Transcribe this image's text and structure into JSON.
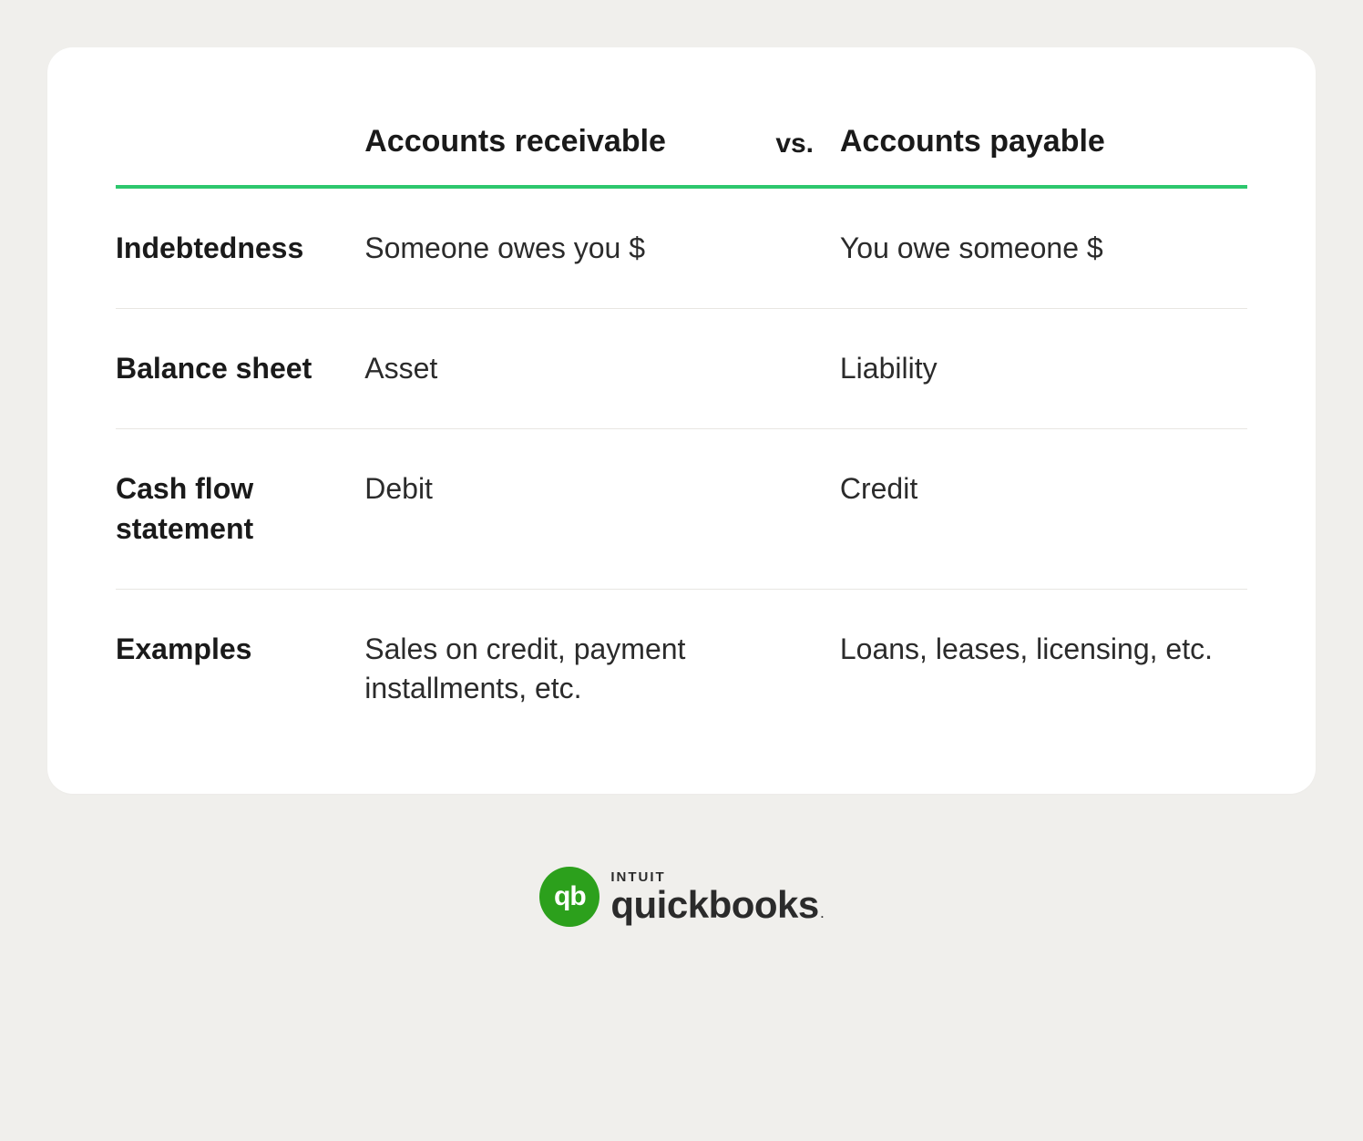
{
  "table": {
    "type": "table",
    "background_color": "#ffffff",
    "card_border_radius": 28,
    "header_underline_color": "#2dc76d",
    "header_underline_width": 4,
    "row_divider_color": "#e8e6e2",
    "header_fontsize": 34,
    "vs_fontsize": 30,
    "cell_fontsize": 32,
    "label_fontweight": 700,
    "text_color": "#2b2b2b",
    "label_color": "#1a1a1a",
    "column_widths_pct": [
      22,
      34,
      8,
      36
    ],
    "columns": {
      "blank": "",
      "receivable": "Accounts receivable",
      "vs": "vs.",
      "payable": "Accounts payable"
    },
    "rows": [
      {
        "label": "Indebtedness",
        "receivable": "Someone owes you $",
        "payable": "You owe someone $"
      },
      {
        "label": "Balance sheet",
        "receivable": "Asset",
        "payable": "Liability"
      },
      {
        "label": "Cash flow statement",
        "receivable": "Debit",
        "payable": "Credit"
      },
      {
        "label": "Examples",
        "receivable": "Sales on credit, payment installments, etc.",
        "payable": "Loans, leases, licensing, etc."
      }
    ]
  },
  "page_background_color": "#f0efec",
  "logo": {
    "circle_color": "#2ca01c",
    "circle_text": "qb",
    "intuit_text": "INTUIT",
    "brand_text": "quickbooks",
    "brand_suffix": ".",
    "text_color": "#2b2b2b",
    "circle_fontsize": 30,
    "intuit_fontsize": 15,
    "brand_fontsize": 42
  }
}
